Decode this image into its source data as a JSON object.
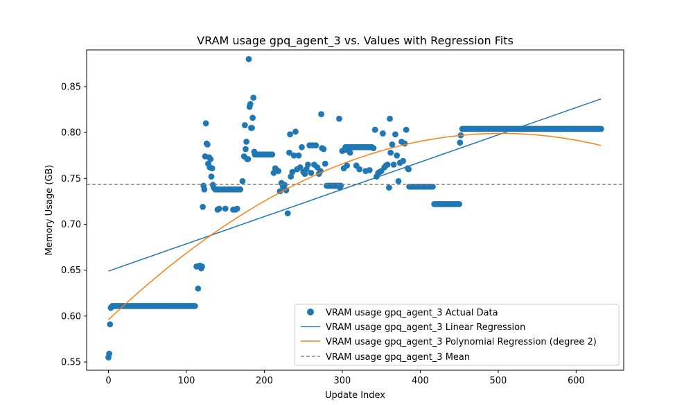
{
  "chart_data": {
    "type": "scatter",
    "title": "VRAM usage gpq_agent_3 vs. Values with Regression Fits",
    "xlabel": "Update Index",
    "ylabel": "Memory Usage (GB)",
    "xlim": [
      -28,
      661
    ],
    "ylim": [
      0.541,
      0.89
    ],
    "x_ticks": [
      0,
      100,
      200,
      300,
      400,
      500,
      600
    ],
    "y_ticks": [
      0.55,
      0.6,
      0.65,
      0.7,
      0.75,
      0.8,
      0.85
    ],
    "y_tick_labels": [
      "0.55",
      "0.60",
      "0.65",
      "0.70",
      "0.75",
      "0.80",
      "0.85"
    ],
    "grid": false,
    "legend_position": "lower-right",
    "colors": {
      "actual": "#1f77b4",
      "linear": "#1f77b4",
      "poly": "#ff7f0e",
      "mean": "#808080"
    },
    "series": [
      {
        "name": "VRAM usage gpq_agent_3 Actual Data",
        "kind": "scatter",
        "segments": [
          {
            "x_start": 5,
            "x_end": 112,
            "step": 2,
            "y": 0.611
          },
          {
            "x_start": 137,
            "x_end": 170,
            "step": 2,
            "y": 0.738
          },
          {
            "x_start": 188,
            "x_end": 210,
            "step": 2,
            "y": 0.776
          },
          {
            "x_start": 282,
            "x_end": 298,
            "step": 2,
            "y": 0.742
          },
          {
            "x_start": 304,
            "x_end": 338,
            "step": 2,
            "y": 0.784
          },
          {
            "x_start": 386,
            "x_end": 416,
            "step": 2,
            "y": 0.741
          },
          {
            "x_start": 418,
            "x_end": 450,
            "step": 2,
            "y": 0.722
          },
          {
            "x_start": 454,
            "x_end": 632,
            "step": 2,
            "y": 0.804
          }
        ],
        "points": [
          [
            0,
            0.555
          ],
          [
            1,
            0.559
          ],
          [
            2,
            0.591
          ],
          [
            3,
            0.609
          ],
          [
            4,
            0.61
          ],
          [
            113,
            0.654
          ],
          [
            115,
            0.63
          ],
          [
            117,
            0.655
          ],
          [
            119,
            0.652
          ],
          [
            120,
            0.654
          ],
          [
            121,
            0.719
          ],
          [
            122,
            0.742
          ],
          [
            123,
            0.738
          ],
          [
            124,
            0.774
          ],
          [
            125,
            0.81
          ],
          [
            126,
            0.788
          ],
          [
            127,
            0.787
          ],
          [
            128,
            0.766
          ],
          [
            129,
            0.773
          ],
          [
            130,
            0.762
          ],
          [
            131,
            0.771
          ],
          [
            132,
            0.752
          ],
          [
            133,
            0.761
          ],
          [
            134,
            0.743
          ],
          [
            135,
            0.74
          ],
          [
            140,
            0.716
          ],
          [
            142,
            0.717
          ],
          [
            150,
            0.717
          ],
          [
            160,
            0.716
          ],
          [
            163,
            0.716
          ],
          [
            165,
            0.717
          ],
          [
            172,
            0.747
          ],
          [
            174,
            0.774
          ],
          [
            175,
            0.808
          ],
          [
            176,
            0.782
          ],
          [
            177,
            0.79
          ],
          [
            178,
            0.771
          ],
          [
            179,
            0.771
          ],
          [
            180,
            0.88
          ],
          [
            181,
            0.828
          ],
          [
            182,
            0.831
          ],
          [
            183,
            0.805
          ],
          [
            184,
            0.805
          ],
          [
            185,
            0.816
          ],
          [
            186,
            0.838
          ],
          [
            187,
            0.779
          ],
          [
            212,
            0.756
          ],
          [
            214,
            0.761
          ],
          [
            216,
            0.759
          ],
          [
            218,
            0.758
          ],
          [
            220,
            0.736
          ],
          [
            222,
            0.745
          ],
          [
            224,
            0.741
          ],
          [
            226,
            0.743
          ],
          [
            228,
            0.737
          ],
          [
            230,
            0.712
          ],
          [
            232,
            0.778
          ],
          [
            233,
            0.798
          ],
          [
            234,
            0.752
          ],
          [
            236,
            0.757
          ],
          [
            238,
            0.775
          ],
          [
            240,
            0.801
          ],
          [
            242,
            0.76
          ],
          [
            244,
            0.775
          ],
          [
            246,
            0.762
          ],
          [
            248,
            0.784
          ],
          [
            250,
            0.757
          ],
          [
            252,
            0.755
          ],
          [
            254,
            0.76
          ],
          [
            256,
            0.765
          ],
          [
            258,
            0.786
          ],
          [
            260,
            0.756
          ],
          [
            262,
            0.786
          ],
          [
            264,
            0.765
          ],
          [
            266,
            0.786
          ],
          [
            268,
            0.762
          ],
          [
            270,
            0.755
          ],
          [
            272,
            0.758
          ],
          [
            273,
            0.82
          ],
          [
            274,
            0.783
          ],
          [
            276,
            0.782
          ],
          [
            278,
            0.766
          ],
          [
            280,
            0.742
          ],
          [
            296,
            0.815
          ],
          [
            297,
            0.74
          ],
          [
            300,
            0.78
          ],
          [
            302,
            0.761
          ],
          [
            304,
            0.781
          ],
          [
            306,
            0.764
          ],
          [
            310,
            0.778
          ],
          [
            318,
            0.764
          ],
          [
            322,
            0.76
          ],
          [
            330,
            0.758
          ],
          [
            335,
            0.759
          ],
          [
            340,
            0.783
          ],
          [
            342,
            0.803
          ],
          [
            344,
            0.752
          ],
          [
            346,
            0.756
          ],
          [
            348,
            0.757
          ],
          [
            350,
            0.758
          ],
          [
            352,
            0.799
          ],
          [
            354,
            0.762
          ],
          [
            356,
            0.764
          ],
          [
            358,
            0.765
          ],
          [
            360,
            0.74
          ],
          [
            361,
            0.815
          ],
          [
            362,
            0.778
          ],
          [
            364,
            0.787
          ],
          [
            366,
            0.765
          ],
          [
            368,
            0.798
          ],
          [
            370,
            0.775
          ],
          [
            372,
            0.747
          ],
          [
            374,
            0.767
          ],
          [
            376,
            0.79
          ],
          [
            378,
            0.769
          ],
          [
            380,
            0.788
          ],
          [
            382,
            0.803
          ],
          [
            384,
            0.761
          ],
          [
            385,
            0.76
          ],
          [
            451,
            0.789
          ],
          [
            452,
            0.797
          ]
        ]
      },
      {
        "name": "VRAM usage gpq_agent_3 Linear Regression",
        "kind": "line",
        "x_range": [
          0,
          632
        ],
        "intercept": 0.649,
        "slope": 0.000297
      },
      {
        "name": "VRAM usage gpq_agent_3 Polynomial Regression (degree 2)",
        "kind": "line",
        "x_range": [
          0,
          632
        ],
        "coefficients": [
          0.596,
          0.000806,
          -8e-07
        ]
      },
      {
        "name": "VRAM usage gpq_agent_3 Mean",
        "kind": "hline",
        "y": 0.7435
      }
    ]
  }
}
